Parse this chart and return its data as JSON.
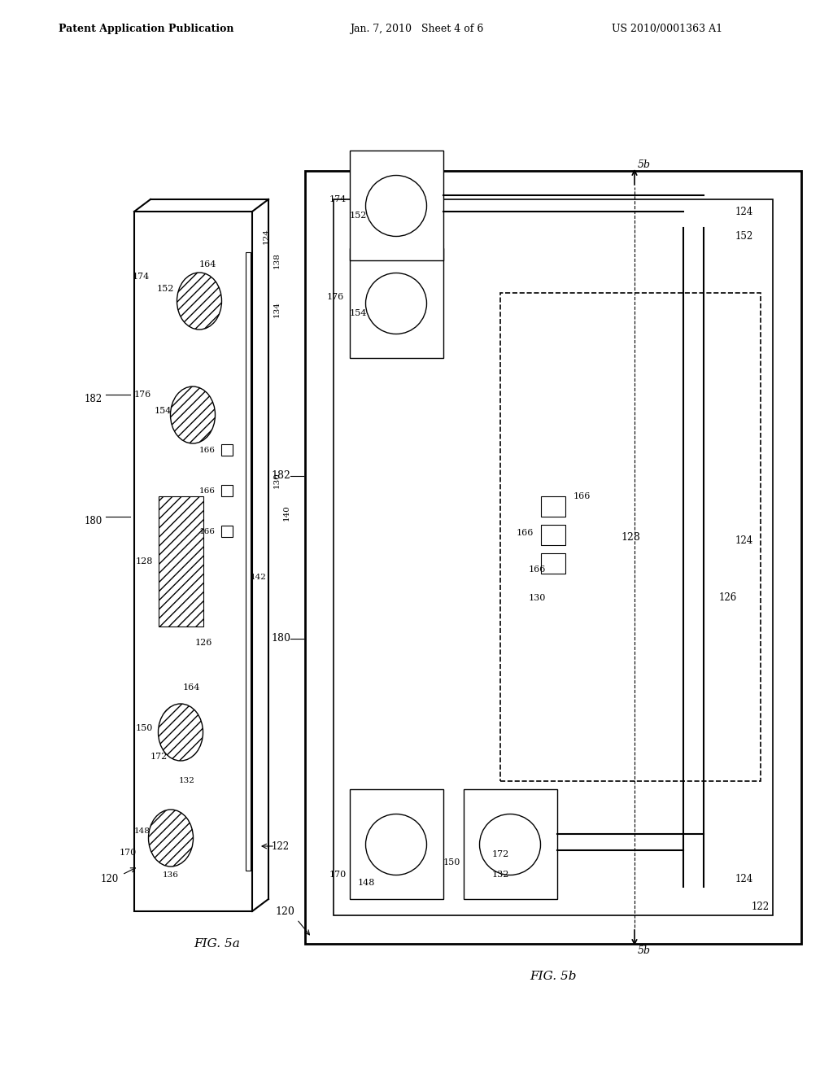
{
  "bg_color": "#ffffff",
  "header_left": "Patent Application Publication",
  "header_center": "Jan. 7, 2010   Sheet 4 of 6",
  "header_right": "US 2010/0001363 A1",
  "fig5a_label": "FIG. 5a",
  "fig5b_label": "FIG. 5b",
  "line_color": "#000000",
  "hatch_color": "#555555",
  "light_gray": "#cccccc"
}
